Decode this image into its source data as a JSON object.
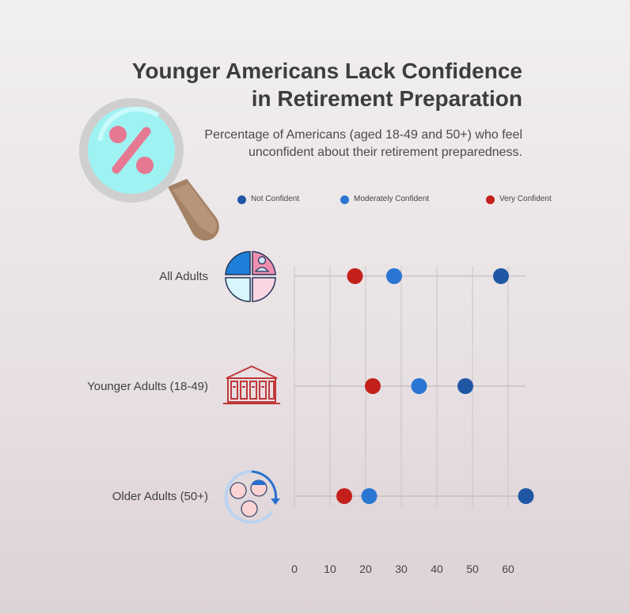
{
  "title_lines": [
    "Younger Americans Lack Confidence",
    "in Retirement Preparation"
  ],
  "subtitle_lines": [
    "Percentage of Americans (aged 18-49 and 50+) who feel",
    "unconfident about their retirement preparedness."
  ],
  "legend": [
    {
      "label": "Not Confident",
      "color": "#1f57a5"
    },
    {
      "label": "Moderately Confident",
      "color": "#2a76d2"
    },
    {
      "label": "Very Confident",
      "color": "#c4201b"
    }
  ],
  "icons": {
    "header": "magnifier-percent-icon",
    "all_adults": "family-pie-icon",
    "younger_adults": "building-icon",
    "older_adults": "generations-cycle-icon"
  },
  "chart_data": {
    "type": "dot",
    "categories": [
      "All Adults",
      "Younger Adults (18-49)",
      "Older Adults (50+)"
    ],
    "series": [
      {
        "name": "Not Confident",
        "color": "#1f57a5",
        "values": [
          58,
          48,
          65
        ]
      },
      {
        "name": "Moderately Confident",
        "color": "#2a76d2",
        "values": [
          28,
          35,
          21
        ]
      },
      {
        "name": "Very Confident",
        "color": "#c4201b",
        "values": [
          17,
          22,
          14
        ]
      }
    ],
    "xticks": [
      0,
      10,
      20,
      30,
      40,
      50,
      60
    ],
    "xlim": [
      0,
      65
    ],
    "grid": true,
    "legend_position": "top"
  }
}
